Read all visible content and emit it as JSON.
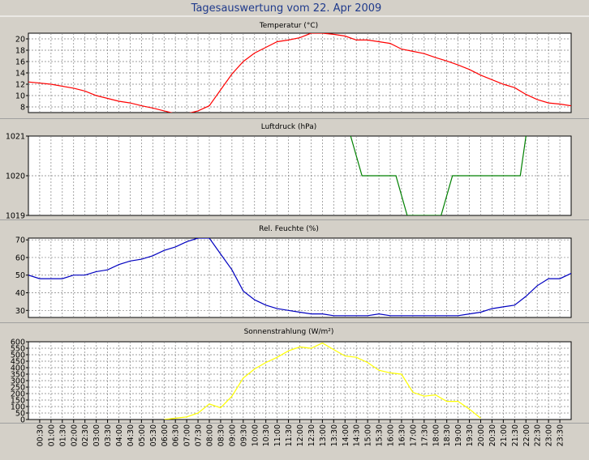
{
  "window_title": "Tagesauswertung vom 22. Apr 2009",
  "colors": {
    "background": "#d4d0c8",
    "plot_background": "#ffffff",
    "grid": "#808080",
    "title": "#1f3a8c",
    "temperature": "#ff0000",
    "pressure": "#008000",
    "humidity": "#0000c0",
    "radiation": "#ffff00"
  },
  "x_tick_labels": [
    "00:30",
    "01:00",
    "01:30",
    "02:00",
    "02:30",
    "03:00",
    "03:30",
    "04:00",
    "04:30",
    "05:00",
    "05:30",
    "06:00",
    "06:30",
    "07:00",
    "07:30",
    "08:00",
    "08:30",
    "09:00",
    "09:30",
    "10:00",
    "10:30",
    "11:00",
    "11:30",
    "12:00",
    "12:30",
    "13:00",
    "13:30",
    "14:00",
    "14:30",
    "15:00",
    "15:30",
    "16:00",
    "16:30",
    "17:00",
    "17:30",
    "18:00",
    "18:30",
    "19:00",
    "19:30",
    "20:00",
    "20:30",
    "21:00",
    "21:30",
    "22:00",
    "22:30",
    "23:00",
    "23:30"
  ],
  "chart_data": [
    {
      "type": "line",
      "title": "Temperatur (°C)",
      "ylim": [
        7,
        21
      ],
      "yticks": [
        8,
        10,
        12,
        14,
        16,
        18,
        20
      ],
      "grid": true,
      "series": [
        {
          "color": "#ff0000",
          "x": [
            "00:00",
            "01:00",
            "02:00",
            "02:30",
            "03:00",
            "03:30",
            "04:00",
            "04:30",
            "05:00",
            "05:30",
            "06:00",
            "06:30",
            "07:00",
            "07:30",
            "08:00",
            "08:30",
            "09:00",
            "09:30",
            "10:00",
            "10:30",
            "11:00",
            "11:30",
            "12:00",
            "12:30",
            "13:00",
            "13:30",
            "14:00",
            "14:30",
            "15:00",
            "15:30",
            "16:00",
            "16:30",
            "17:00",
            "17:30",
            "18:00",
            "18:30",
            "19:00",
            "19:30",
            "20:00",
            "20:30",
            "21:00",
            "21:30",
            "22:00",
            "22:30",
            "23:00",
            "23:30",
            "24:00"
          ],
          "values": [
            12.4,
            12.0,
            11.3,
            10.8,
            10.0,
            9.5,
            9.0,
            8.7,
            8.2,
            7.8,
            7.3,
            6.8,
            6.8,
            7.3,
            8.2,
            11.0,
            13.8,
            16.0,
            17.5,
            18.5,
            19.5,
            19.8,
            20.2,
            21.0,
            21.0,
            20.8,
            20.5,
            19.8,
            19.8,
            19.5,
            19.2,
            18.2,
            17.8,
            17.4,
            16.7,
            16.1,
            15.4,
            14.6,
            13.6,
            12.8,
            12.0,
            11.4,
            10.2,
            9.3,
            8.7,
            8.5,
            8.2
          ]
        }
      ]
    },
    {
      "type": "line",
      "title": "Luftdruck (hPa)",
      "ylim": [
        1019,
        1021
      ],
      "yticks": [
        1019,
        1020,
        1021
      ],
      "grid": true,
      "series": [
        {
          "color": "#008000",
          "x": [
            "14:15",
            "14:45",
            "15:00",
            "15:30",
            "16:00",
            "16:15",
            "16:45",
            "17:00",
            "17:30",
            "18:00",
            "18:15",
            "18:45",
            "19:00",
            "19:30",
            "20:00",
            "20:30",
            "21:00",
            "21:30",
            "21:45",
            "22:00"
          ],
          "values": [
            1021,
            1020,
            1020,
            1020,
            1020,
            1020,
            1019,
            1019,
            1019,
            1019,
            1019,
            1020,
            1020,
            1020,
            1020,
            1020,
            1020,
            1020,
            1020,
            1021
          ]
        }
      ]
    },
    {
      "type": "line",
      "title": "Rel. Feuchte (%)",
      "ylim": [
        26,
        71
      ],
      "yticks": [
        30,
        40,
        50,
        60,
        70
      ],
      "grid": true,
      "series": [
        {
          "color": "#0000c0",
          "x": [
            "00:00",
            "00:30",
            "01:00",
            "01:30",
            "02:00",
            "02:30",
            "03:00",
            "03:30",
            "04:00",
            "04:30",
            "05:00",
            "05:30",
            "06:00",
            "06:30",
            "07:00",
            "07:30",
            "08:00",
            "08:30",
            "09:00",
            "09:30",
            "10:00",
            "10:30",
            "11:00",
            "11:30",
            "12:00",
            "12:30",
            "13:00",
            "13:30",
            "14:00",
            "14:30",
            "15:00",
            "15:30",
            "16:00",
            "16:30",
            "17:00",
            "17:30",
            "18:00",
            "18:30",
            "19:00",
            "19:30",
            "20:00",
            "20:30",
            "21:00",
            "21:30",
            "22:00",
            "22:30",
            "23:00",
            "23:30",
            "24:00"
          ],
          "values": [
            50,
            48,
            48,
            48,
            50,
            50,
            52,
            53,
            56,
            58,
            59,
            61,
            64,
            66,
            69,
            71,
            71,
            62,
            53,
            41,
            36,
            33,
            31,
            30,
            29,
            28,
            28,
            27,
            27,
            27,
            27,
            28,
            27,
            27,
            27,
            27,
            27,
            27,
            27,
            28,
            29,
            31,
            32,
            33,
            38,
            44,
            48,
            48,
            51
          ]
        }
      ]
    },
    {
      "type": "line",
      "title": "Sonnenstrahlung (W/m²)",
      "ylim": [
        0,
        600
      ],
      "yticks": [
        0,
        50,
        100,
        150,
        200,
        250,
        300,
        350,
        400,
        450,
        500,
        550,
        600
      ],
      "grid": true,
      "series": [
        {
          "color": "#ffff00",
          "x": [
            "06:00",
            "06:30",
            "07:00",
            "07:30",
            "08:00",
            "08:30",
            "09:00",
            "09:30",
            "10:00",
            "10:30",
            "11:00",
            "11:30",
            "12:00",
            "12:30",
            "13:00",
            "13:30",
            "14:00",
            "14:30",
            "15:00",
            "15:30",
            "16:00",
            "16:30",
            "17:00",
            "17:30",
            "18:00",
            "18:30",
            "19:00",
            "19:30",
            "20:00"
          ],
          "values": [
            0,
            10,
            20,
            50,
            120,
            90,
            180,
            320,
            390,
            440,
            480,
            530,
            560,
            550,
            590,
            540,
            490,
            480,
            440,
            380,
            360,
            350,
            210,
            180,
            190,
            140,
            140,
            80,
            10
          ]
        }
      ]
    }
  ]
}
